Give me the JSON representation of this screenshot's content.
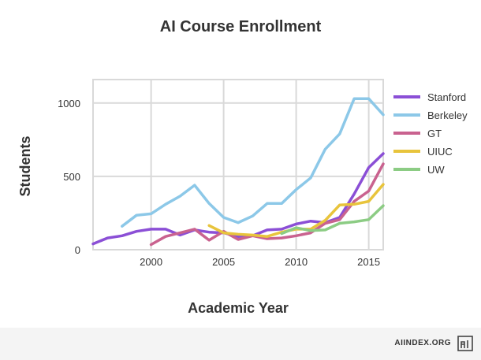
{
  "chart_data": {
    "type": "line",
    "title": "AI Course Enrollment",
    "xlabel": "Academic Year",
    "ylabel": "Students",
    "xlim": [
      1996,
      2016
    ],
    "ylim": [
      0,
      1160
    ],
    "x_ticks": [
      2000,
      2005,
      2010,
      2015
    ],
    "y_ticks": [
      0,
      500,
      1000
    ],
    "grid": true,
    "legend_position": "right",
    "series": [
      {
        "name": "Stanford",
        "color": "#8b4fd6",
        "points": [
          [
            1996,
            40
          ],
          [
            1997,
            80
          ],
          [
            1998,
            95
          ],
          [
            1999,
            125
          ],
          [
            2000,
            140
          ],
          [
            2001,
            140
          ],
          [
            2002,
            100
          ],
          [
            2003,
            135
          ],
          [
            2004,
            120
          ],
          [
            2005,
            115
          ],
          [
            2006,
            90
          ],
          [
            2007,
            95
          ],
          [
            2008,
            135
          ],
          [
            2009,
            140
          ],
          [
            2010,
            175
          ],
          [
            2011,
            195
          ],
          [
            2012,
            185
          ],
          [
            2013,
            220
          ],
          [
            2014,
            380
          ],
          [
            2015,
            560
          ],
          [
            2016,
            655
          ]
        ]
      },
      {
        "name": "Berkeley",
        "color": "#8cc8e8",
        "points": [
          [
            1998,
            160
          ],
          [
            1999,
            235
          ],
          [
            2000,
            245
          ],
          [
            2001,
            310
          ],
          [
            2002,
            365
          ],
          [
            2003,
            440
          ],
          [
            2004,
            315
          ],
          [
            2005,
            220
          ],
          [
            2006,
            185
          ],
          [
            2007,
            230
          ],
          [
            2008,
            315
          ],
          [
            2009,
            315
          ],
          [
            2010,
            410
          ],
          [
            2011,
            490
          ],
          [
            2012,
            685
          ],
          [
            2013,
            790
          ],
          [
            2014,
            1030
          ],
          [
            2015,
            1030
          ],
          [
            2016,
            920
          ]
        ]
      },
      {
        "name": "GT",
        "color": "#c9628f",
        "points": [
          [
            2000,
            35
          ],
          [
            2001,
            90
          ],
          [
            2002,
            115
          ],
          [
            2003,
            140
          ],
          [
            2004,
            65
          ],
          [
            2005,
            125
          ],
          [
            2006,
            70
          ],
          [
            2007,
            95
          ],
          [
            2008,
            75
          ],
          [
            2009,
            80
          ],
          [
            2010,
            95
          ],
          [
            2011,
            115
          ],
          [
            2012,
            180
          ],
          [
            2013,
            205
          ],
          [
            2014,
            330
          ],
          [
            2015,
            400
          ],
          [
            2016,
            585
          ]
        ]
      },
      {
        "name": "UIUC",
        "color": "#e8c43c",
        "points": [
          [
            2004,
            165
          ],
          [
            2005,
            115
          ],
          [
            2006,
            105
          ],
          [
            2007,
            100
          ],
          [
            2008,
            90
          ],
          [
            2009,
            120
          ],
          [
            2010,
            140
          ],
          [
            2011,
            140
          ],
          [
            2012,
            200
          ],
          [
            2013,
            305
          ],
          [
            2014,
            310
          ],
          [
            2015,
            330
          ],
          [
            2016,
            445
          ]
        ]
      },
      {
        "name": "UW",
        "color": "#8ccc84",
        "points": [
          [
            2009,
            110
          ],
          [
            2010,
            150
          ],
          [
            2011,
            130
          ],
          [
            2012,
            135
          ],
          [
            2013,
            180
          ],
          [
            2014,
            190
          ],
          [
            2015,
            205
          ],
          [
            2016,
            300
          ]
        ]
      }
    ]
  },
  "footer": {
    "site_label": "AIINDEX.ORG",
    "logo_icon": "ai-index-logo-icon"
  }
}
